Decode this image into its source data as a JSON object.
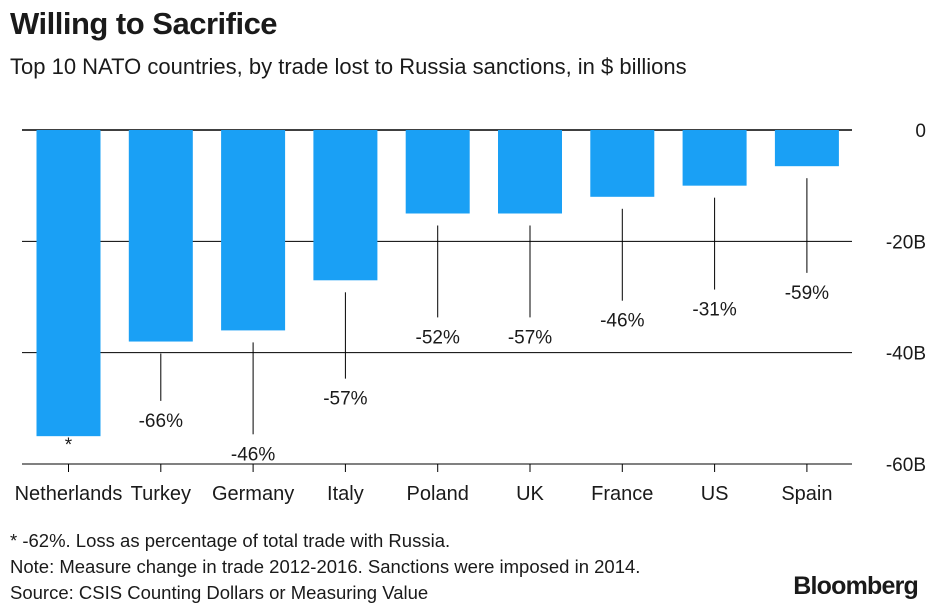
{
  "header": {
    "title": "Willing to Sacrifice",
    "subtitle": "Top 10 NATO countries, by trade lost to Russia sanctions, in $ billions"
  },
  "chart_data": {
    "type": "bar",
    "categories": [
      "Netherlands",
      "Turkey",
      "Germany",
      "Italy",
      "Poland",
      "UK",
      "France",
      "US",
      "Spain"
    ],
    "values": [
      -55,
      -38,
      -36,
      -27,
      -15,
      -15,
      -12,
      -10,
      -6.5
    ],
    "data_labels": [
      "*",
      "-66%",
      "-46%",
      "-57%",
      "-52%",
      "-57%",
      "-46%",
      "-31%",
      "-59%"
    ],
    "label_values": [
      -56,
      -51,
      -57,
      -47,
      -36,
      -36,
      -33,
      -31,
      -28
    ],
    "ylim": [
      -60,
      0
    ],
    "y_ticks": [
      0,
      -20,
      -40,
      -60
    ],
    "y_tick_labels": [
      "0",
      "-20B",
      "-40B",
      "-60B"
    ],
    "y_axis_side": "right",
    "bar_color": "#1aa0f5",
    "grid": true
  },
  "notes": {
    "line1": "* -62%. Loss as percentage of total trade with Russia.",
    "line2": "Note: Measure change in trade 2012-2016. Sanctions were imposed in 2014.",
    "line3": "Source: CSIS Counting Dollars or Measuring Value"
  },
  "brand": "Bloomberg"
}
